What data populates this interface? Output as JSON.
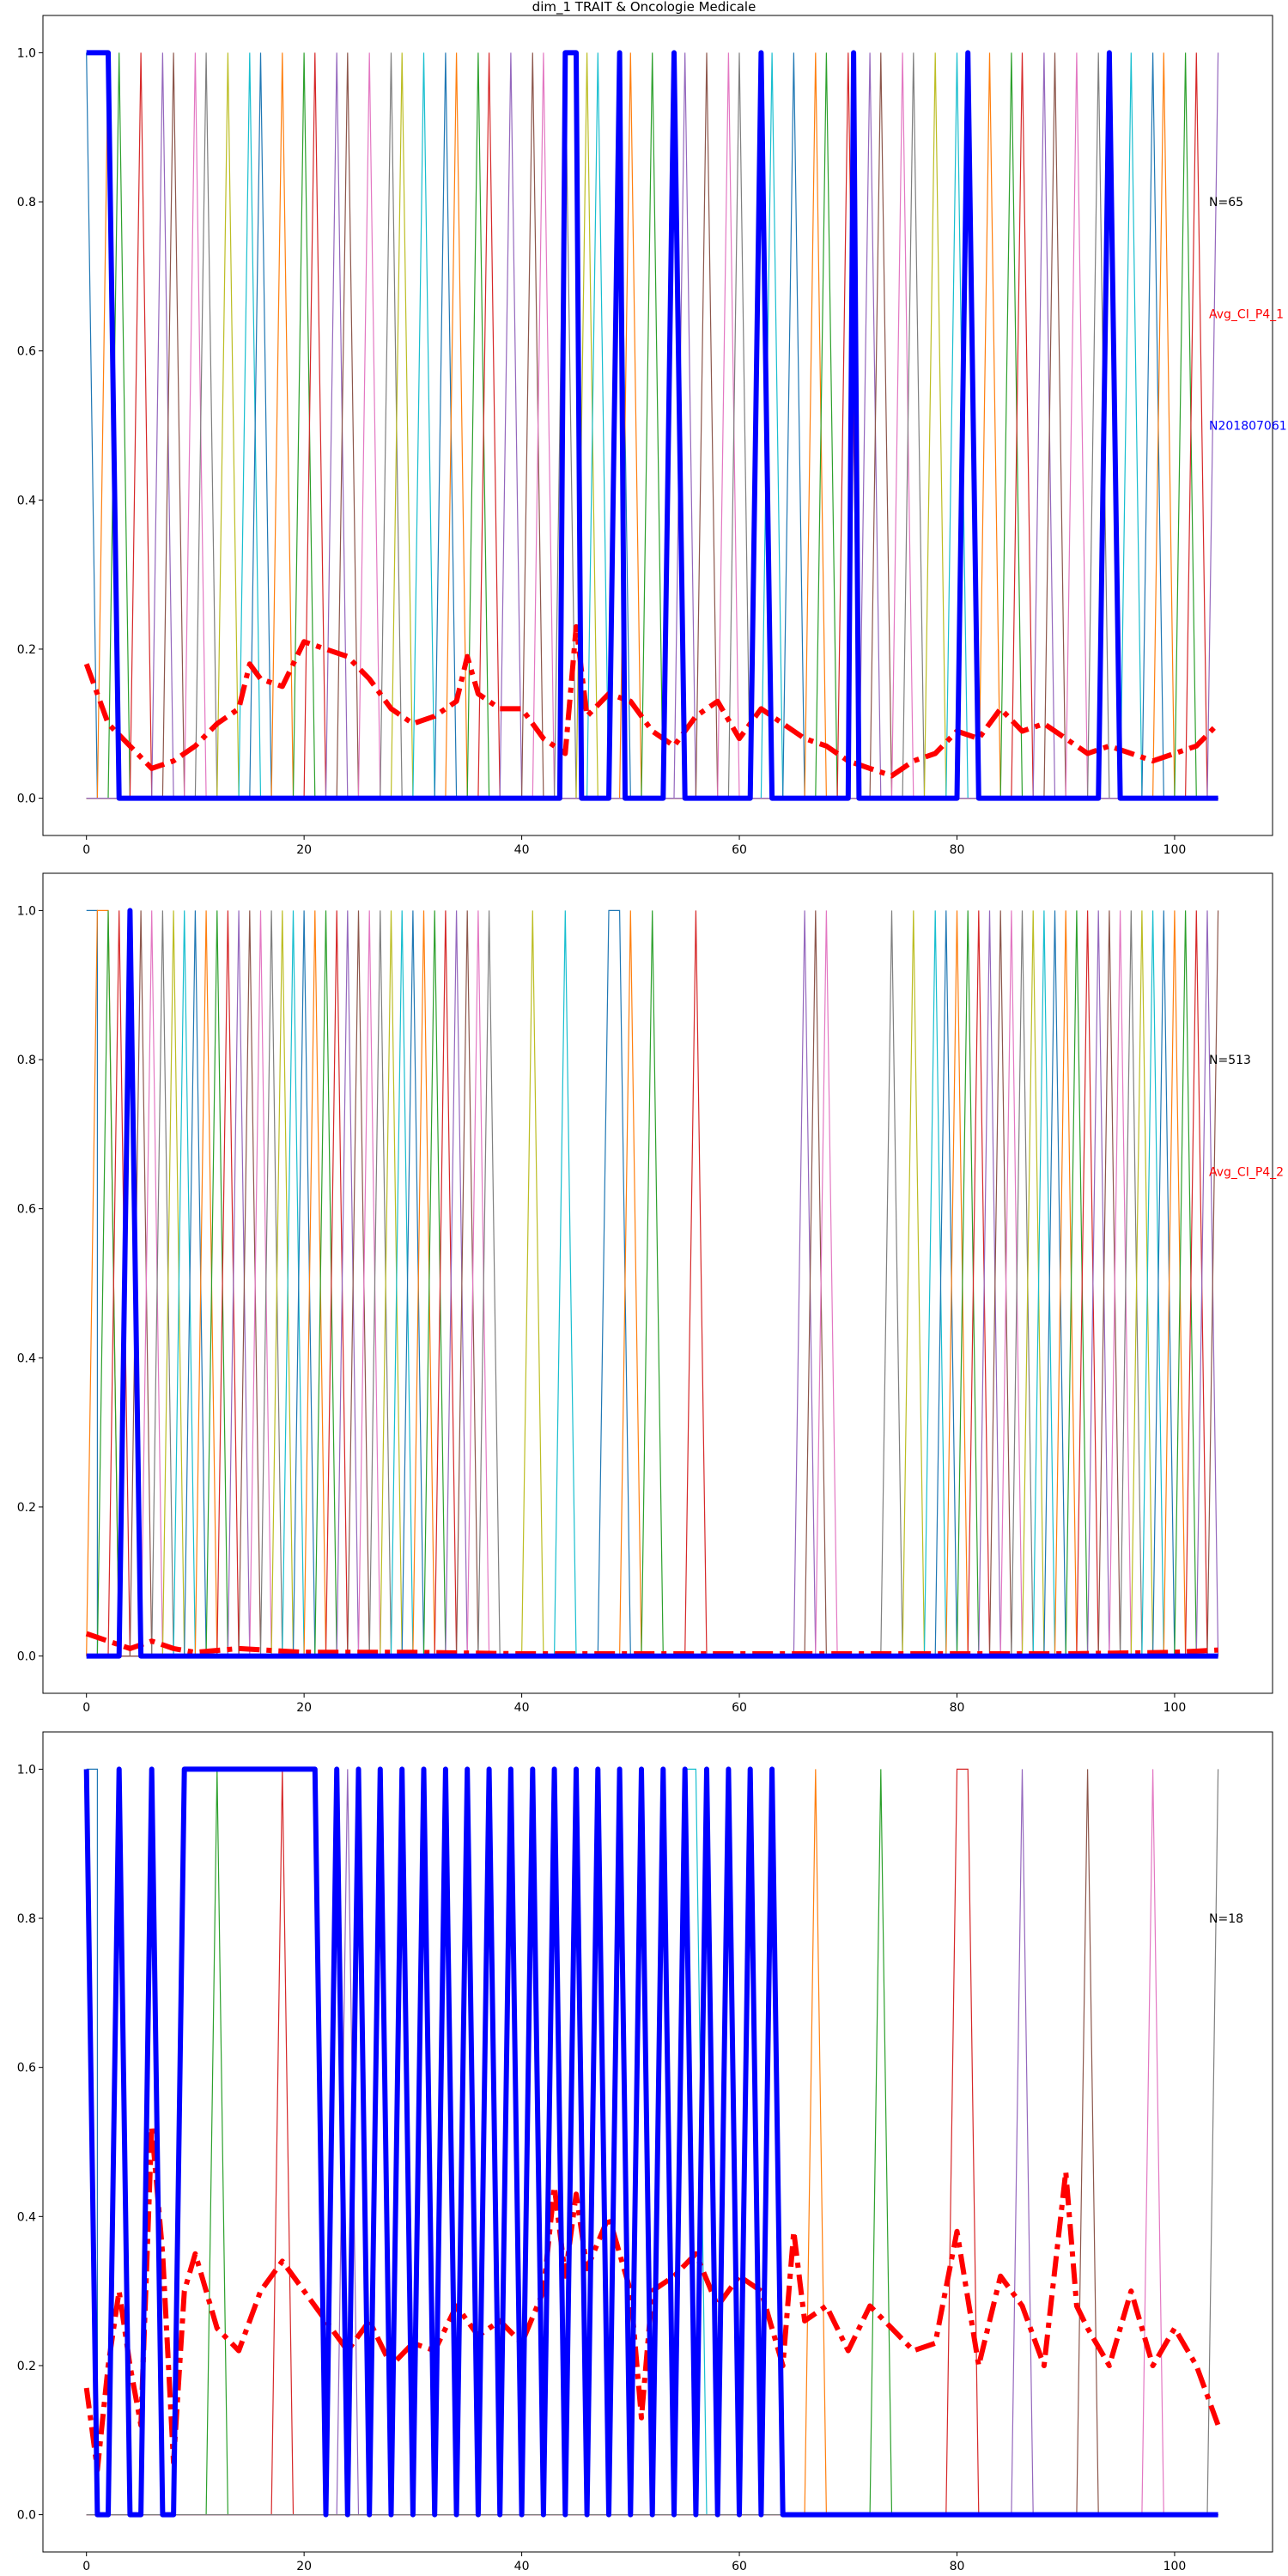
{
  "figure": {
    "title": "dim_1 TRAIT & Oncologie Medicale"
  },
  "palette": [
    "#1f77b4",
    "#ff7f0e",
    "#2ca02c",
    "#d62728",
    "#9467bd",
    "#8c564b",
    "#e377c2",
    "#7f7f7f",
    "#bcbd22",
    "#17becf"
  ],
  "chart_data": [
    {
      "type": "line",
      "title": "",
      "xlabel": "",
      "ylabel": "",
      "xlim": [
        -4,
        109
      ],
      "ylim": [
        -0.05,
        1.05
      ],
      "xticks": [
        0,
        20,
        40,
        60,
        80,
        100
      ],
      "yticks": [
        0.0,
        0.2,
        0.4,
        0.6,
        0.8,
        1.0
      ],
      "grid": false,
      "x_range": [
        0,
        104
      ],
      "background_series": {
        "count": 65,
        "description": "one-hot indicator series, each 1.0 at one position and 0.0 elsewhere"
      },
      "series": [
        {
          "color": "#ff0000",
          "style": "dashdot",
          "x": [
            0,
            2,
            4,
            6,
            8,
            10,
            12,
            14,
            15,
            16,
            18,
            20,
            22,
            24,
            26,
            28,
            30,
            32,
            34,
            35,
            36,
            38,
            40,
            42,
            44,
            45,
            46,
            48,
            50,
            52,
            54,
            56,
            58,
            60,
            62,
            64,
            66,
            68,
            70,
            72,
            74,
            76,
            78,
            80,
            82,
            84,
            86,
            88,
            90,
            92,
            94,
            96,
            98,
            100,
            102,
            104
          ],
          "y": [
            0.18,
            0.1,
            0.07,
            0.04,
            0.05,
            0.07,
            0.1,
            0.12,
            0.18,
            0.16,
            0.15,
            0.21,
            0.2,
            0.19,
            0.16,
            0.12,
            0.1,
            0.11,
            0.13,
            0.19,
            0.14,
            0.12,
            0.12,
            0.08,
            0.06,
            0.23,
            0.11,
            0.14,
            0.13,
            0.09,
            0.07,
            0.11,
            0.13,
            0.08,
            0.12,
            0.1,
            0.08,
            0.07,
            0.05,
            0.04,
            0.03,
            0.05,
            0.06,
            0.09,
            0.08,
            0.12,
            0.09,
            0.1,
            0.08,
            0.06,
            0.07,
            0.06,
            0.05,
            0.06,
            0.07,
            0.1
          ]
        },
        {
          "color": "#0000ff",
          "style": "solid",
          "x": [
            0,
            2,
            3,
            43.5,
            44,
            45,
            45.5,
            46,
            48,
            49,
            49.5,
            50,
            53,
            54,
            55,
            61,
            62,
            63,
            70,
            70.5,
            71,
            80,
            81,
            82,
            93,
            94,
            95,
            104
          ],
          "y": [
            1,
            1,
            0,
            0,
            1,
            1,
            0,
            0,
            0,
            1,
            0,
            0,
            0,
            1,
            0,
            0,
            1,
            0,
            0,
            1,
            0,
            0,
            1,
            0,
            0,
            1,
            0,
            0
          ]
        }
      ],
      "annotations": [
        {
          "text": "N=65",
          "color": "#000000",
          "y": 0.8
        },
        {
          "text": "Avg_CI_P4_1",
          "color": "#ff0000",
          "y": 0.65
        },
        {
          "text": "N201807061",
          "color": "#0000ff",
          "y": 0.5
        }
      ]
    },
    {
      "type": "line",
      "title": "",
      "xlabel": "",
      "ylabel": "",
      "xlim": [
        -4,
        109
      ],
      "ylim": [
        -0.05,
        1.05
      ],
      "xticks": [
        0,
        20,
        40,
        60,
        80,
        100
      ],
      "yticks": [
        0.0,
        0.2,
        0.4,
        0.6,
        0.8,
        1.0
      ],
      "grid": false,
      "x_range": [
        0,
        104
      ],
      "background_series": {
        "count": 513,
        "description": "one-hot indicator series, sparse in the 40-75 range"
      },
      "series": [
        {
          "color": "#ff0000",
          "style": "dashdot",
          "x": [
            0,
            2,
            4,
            6,
            8,
            10,
            14,
            20,
            30,
            40,
            50,
            60,
            70,
            80,
            90,
            100,
            104
          ],
          "y": [
            0.03,
            0.02,
            0.01,
            0.02,
            0.01,
            0.005,
            0.01,
            0.005,
            0.005,
            0.003,
            0.003,
            0.003,
            0.003,
            0.003,
            0.003,
            0.005,
            0.008
          ]
        },
        {
          "color": "#0000ff",
          "style": "solid",
          "x": [
            0,
            3,
            4,
            5,
            104
          ],
          "y": [
            0,
            0,
            1,
            0,
            0
          ]
        }
      ],
      "annotations": [
        {
          "text": "N=513",
          "color": "#000000",
          "y": 0.8
        },
        {
          "text": "Avg_CI_P4_2",
          "color": "#ff0000",
          "y": 0.65
        }
      ]
    },
    {
      "type": "line",
      "title": "",
      "xlabel": "",
      "ylabel": "",
      "xlim": [
        -4,
        109
      ],
      "ylim": [
        -0.05,
        1.05
      ],
      "xticks": [
        0,
        20,
        40,
        60,
        80,
        100
      ],
      "yticks": [
        0.0,
        0.2,
        0.4,
        0.6,
        0.8,
        1.0
      ],
      "grid": false,
      "x_range": [
        0,
        104
      ],
      "background_series": {
        "count": 18,
        "description": "dense one-hot indicator series across the full range"
      },
      "series": [
        {
          "color": "#ff0000",
          "style": "dashdot",
          "x": [
            0,
            1,
            2,
            3,
            4,
            5,
            6,
            7,
            8,
            9,
            10,
            12,
            14,
            16,
            18,
            20,
            22,
            24,
            26,
            28,
            30,
            32,
            34,
            36,
            38,
            40,
            42,
            43,
            44,
            45,
            46,
            48,
            50,
            51,
            52,
            54,
            56,
            58,
            60,
            62,
            64,
            65,
            66,
            68,
            70,
            72,
            74,
            76,
            78,
            80,
            82,
            84,
            86,
            88,
            90,
            91,
            92,
            94,
            96,
            98,
            100,
            102,
            104
          ],
          "y": [
            0.17,
            0.06,
            0.2,
            0.3,
            0.2,
            0.12,
            0.52,
            0.35,
            0.07,
            0.3,
            0.35,
            0.25,
            0.22,
            0.3,
            0.34,
            0.3,
            0.26,
            0.22,
            0.26,
            0.2,
            0.23,
            0.22,
            0.28,
            0.24,
            0.26,
            0.23,
            0.3,
            0.44,
            0.32,
            0.43,
            0.33,
            0.4,
            0.3,
            0.13,
            0.3,
            0.32,
            0.35,
            0.28,
            0.32,
            0.3,
            0.2,
            0.38,
            0.26,
            0.28,
            0.22,
            0.28,
            0.25,
            0.22,
            0.23,
            0.38,
            0.2,
            0.32,
            0.28,
            0.2,
            0.46,
            0.28,
            0.25,
            0.2,
            0.3,
            0.2,
            0.25,
            0.2,
            0.12
          ]
        },
        {
          "color": "#0000ff",
          "style": "solid",
          "x": [
            0,
            1,
            2,
            3,
            4,
            5,
            6,
            7,
            8,
            9,
            10,
            21,
            22,
            23,
            24,
            25,
            26,
            27,
            28,
            29,
            30,
            31,
            32,
            33,
            34,
            35,
            36,
            37,
            38,
            39,
            40,
            41,
            42,
            43,
            44,
            45,
            46,
            47,
            48,
            49,
            50,
            51,
            52,
            53,
            54,
            55,
            56,
            57,
            58,
            59,
            60,
            61,
            62,
            63,
            64,
            65,
            104
          ],
          "y": [
            1,
            0,
            0,
            1,
            0,
            0,
            1,
            0,
            0,
            1,
            1,
            1,
            0,
            1,
            0,
            1,
            0,
            1,
            0,
            1,
            0,
            1,
            0,
            1,
            0,
            1,
            0,
            1,
            0,
            1,
            0,
            1,
            0,
            1,
            0,
            1,
            0,
            1,
            0,
            1,
            0,
            1,
            0,
            1,
            0,
            1,
            0,
            1,
            0,
            1,
            0,
            1,
            0,
            1,
            0,
            0,
            0
          ]
        }
      ],
      "annotations": [
        {
          "text": "N=18",
          "color": "#000000",
          "y": 0.8
        }
      ]
    }
  ]
}
